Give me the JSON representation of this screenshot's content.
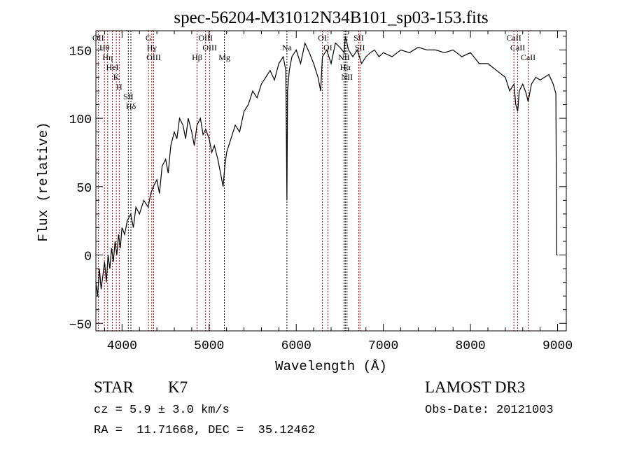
{
  "chart_data": {
    "type": "line",
    "title": "spec-56204-M31012N34B101_sp03-153.fits",
    "xlabel": "Wavelength (Å)",
    "ylabel": "Flux (relative)",
    "xlim": [
      3700,
      9100
    ],
    "ylim": [
      -55.5,
      164
    ],
    "xticks": [
      4000,
      5000,
      6000,
      7000,
      8000,
      9000
    ],
    "xtick_labels": [
      "4000",
      "5000",
      "6000",
      "7000",
      "8000",
      "9000"
    ],
    "yticks": [
      -50,
      0,
      50,
      100,
      150
    ],
    "ytick_labels": [
      "−50",
      "0",
      "50",
      "100",
      "150"
    ],
    "grid": false,
    "series": [
      {
        "name": "flux",
        "x": [
          3700,
          3720,
          3740,
          3760,
          3780,
          3800,
          3820,
          3840,
          3860,
          3880,
          3900,
          3920,
          3940,
          3960,
          3980,
          4000,
          4030,
          4060,
          4100,
          4130,
          4160,
          4200,
          4250,
          4300,
          4330,
          4360,
          4400,
          4430,
          4460,
          4500,
          4530,
          4560,
          4600,
          4630,
          4660,
          4700,
          4730,
          4760,
          4800,
          4830,
          4860,
          4900,
          4930,
          4960,
          5000,
          5030,
          5060,
          5100,
          5130,
          5160,
          5180,
          5200,
          5250,
          5300,
          5350,
          5400,
          5450,
          5500,
          5550,
          5600,
          5650,
          5700,
          5750,
          5800,
          5850,
          5880,
          5893,
          5900,
          5920,
          5950,
          6000,
          6050,
          6100,
          6150,
          6200,
          6250,
          6280,
          6300,
          6350,
          6400,
          6450,
          6500,
          6550,
          6563,
          6600,
          6650,
          6700,
          6750,
          6800,
          6850,
          6900,
          6950,
          7000,
          7100,
          7200,
          7300,
          7400,
          7500,
          7600,
          7700,
          7800,
          7900,
          8000,
          8100,
          8200,
          8300,
          8400,
          8450,
          8500,
          8520,
          8542,
          8560,
          8600,
          8640,
          8662,
          8700,
          8750,
          8800,
          8850,
          8900,
          8950,
          8980,
          8990,
          9000
        ],
        "y": [
          -20,
          -30,
          -10,
          -25,
          -15,
          -5,
          -20,
          0,
          -10,
          5,
          -5,
          10,
          0,
          15,
          5,
          20,
          15,
          25,
          30,
          20,
          35,
          30,
          40,
          35,
          45,
          50,
          55,
          45,
          65,
          70,
          60,
          80,
          90,
          85,
          100,
          95,
          85,
          100,
          90,
          80,
          95,
          100,
          88,
          92,
          85,
          75,
          80,
          70,
          60,
          50,
          65,
          75,
          85,
          95,
          90,
          105,
          110,
          120,
          115,
          125,
          130,
          135,
          128,
          140,
          145,
          135,
          40,
          120,
          135,
          145,
          150,
          140,
          155,
          148,
          140,
          130,
          120,
          145,
          150,
          140,
          155,
          152,
          148,
          160,
          150,
          145,
          150,
          140,
          145,
          148,
          150,
          145,
          148,
          145,
          150,
          148,
          152,
          150,
          150,
          148,
          150,
          145,
          148,
          140,
          140,
          135,
          130,
          120,
          125,
          110,
          105,
          120,
          125,
          118,
          112,
          125,
          130,
          128,
          130,
          132,
          125,
          118,
          0,
          0
        ]
      }
    ],
    "lines": [
      {
        "label": "OII",
        "wl": 3727,
        "color": "red"
      },
      {
        "label": "Hθ",
        "wl": 3798,
        "color": "red"
      },
      {
        "label": "Hη",
        "wl": 3835,
        "color": "red"
      },
      {
        "label": "HeI",
        "wl": 3889,
        "color": "red"
      },
      {
        "label": "K",
        "wl": 3934,
        "color": "red"
      },
      {
        "label": "H",
        "wl": 3968,
        "color": "red"
      },
      {
        "label": "SII",
        "wl": 4072,
        "color": "black"
      },
      {
        "label": "Hδ",
        "wl": 4102,
        "color": "black"
      },
      {
        "label": "G",
        "wl": 4304,
        "color": "red"
      },
      {
        "label": "Hγ",
        "wl": 4341,
        "color": "red"
      },
      {
        "label": "OIII",
        "wl": 4363,
        "color": "red"
      },
      {
        "label": "Hβ",
        "wl": 4861,
        "color": "red"
      },
      {
        "label": "OIII",
        "wl": 4959,
        "color": "red"
      },
      {
        "label": "OIII",
        "wl": 5007,
        "color": "red"
      },
      {
        "label": "Mg",
        "wl": 5175,
        "color": "black"
      },
      {
        "label": "Na",
        "wl": 5893,
        "color": "black"
      },
      {
        "label": "OI",
        "wl": 6300,
        "color": "red"
      },
      {
        "label": "OI",
        "wl": 6363,
        "color": "red"
      },
      {
        "label": "NII",
        "wl": 6548,
        "color": "black"
      },
      {
        "label": "Hα",
        "wl": 6563,
        "color": "black"
      },
      {
        "label": "NII",
        "wl": 6583,
        "color": "black"
      },
      {
        "label": "SII",
        "wl": 6717,
        "color": "red"
      },
      {
        "label": "SII",
        "wl": 6731,
        "color": "red"
      },
      {
        "label": "CaII",
        "wl": 8498,
        "color": "red"
      },
      {
        "label": "CaII",
        "wl": 8542,
        "color": "red"
      },
      {
        "label": "CaII",
        "wl": 8662,
        "color": "red"
      }
    ]
  },
  "info": {
    "object_class": "STAR",
    "subclass": "K7",
    "redshift": "cz = 5.9 ± 3.0 km/s",
    "coords": "RA =  11.71668, DEC =  35.12462",
    "survey": "LAMOST DR3",
    "obs_date": "Obs-Date: 20121003"
  },
  "colors": {
    "red": "#b00000",
    "black": "#000000",
    "line": "#000000"
  }
}
